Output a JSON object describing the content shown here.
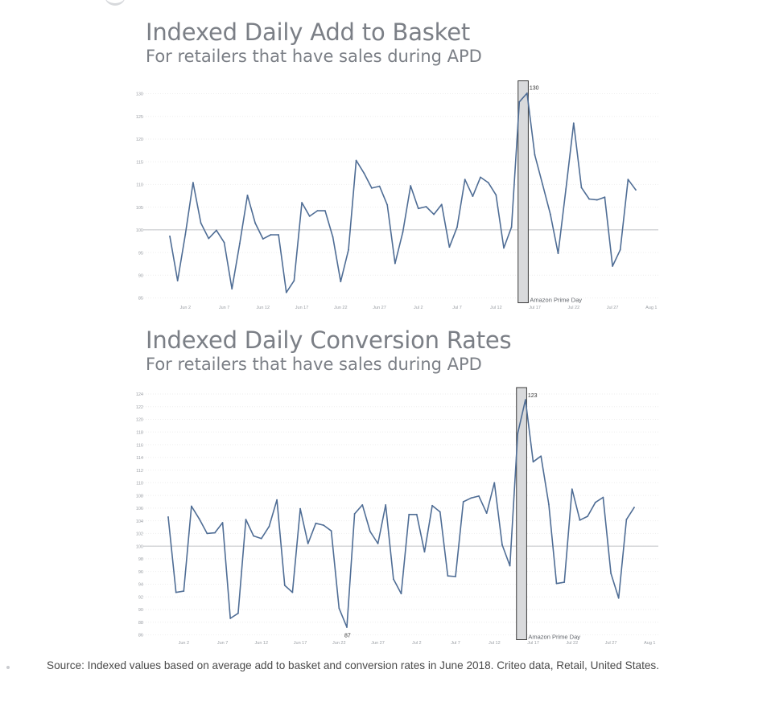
{
  "charts": [
    {
      "title": "Indexed Daily Add to Basket",
      "subtitle": "For retailers that have sales during APD"
    },
    {
      "title": "Indexed Daily Conversion Rates",
      "subtitle": "For retailers that have sales during APD"
    }
  ],
  "source": "Source: Indexed values based on average add to basket and conversion rates in June 2018. Criteo data, Retail, United States.",
  "chart_data": [
    {
      "type": "line",
      "title": "Indexed Daily Add to Basket",
      "subtitle": "For retailers that have sales during APD",
      "x_start": "2018-05-31",
      "xtick_labels": [
        "Jun 2",
        "Jun 7",
        "Jun 12",
        "Jun 17",
        "Jun 22",
        "Jun 27",
        "Jul 2",
        "Jul 7",
        "Jul 12",
        "Jul 17",
        "Jul 22",
        "Jul 27",
        "Aug 1"
      ],
      "ytick_labels": [
        "85",
        "90",
        "95",
        "100",
        "105",
        "110",
        "115",
        "120",
        "125",
        "130"
      ],
      "ylim": [
        85,
        130
      ],
      "reference_line": 100,
      "color": "#4f6d95",
      "highlight": {
        "label": "Amazon Prime Day",
        "from": "Jul 16",
        "to": "Jul 17"
      },
      "annotations": [
        {
          "x": "Jul 17",
          "value": 130,
          "text": "130"
        }
      ],
      "series": [
        {
          "values": [
            98.6,
            88.8,
            99.0,
            110.4,
            101.5,
            98.1,
            99.9,
            97.2,
            87.0,
            97.0,
            107.6,
            101.5,
            98.0,
            98.9,
            98.9,
            86.2,
            88.8,
            106.0,
            103.0,
            104.2,
            104.2,
            98.4,
            88.6,
            95.6,
            115.3,
            112.5,
            109.2,
            109.6,
            105.5,
            92.6,
            99.5,
            109.7,
            104.7,
            105.1,
            103.4,
            105.6,
            96.2,
            100.6,
            111.1,
            107.4,
            111.6,
            110.4,
            107.7,
            96.0,
            100.6,
            128.2,
            130.1,
            116.5,
            110.0,
            103.4,
            94.8,
            109.0,
            123.5,
            109.3,
            106.8,
            106.6,
            107.2,
            92.0,
            95.6,
            111.1,
            108.8
          ]
        }
      ]
    },
    {
      "type": "line",
      "title": "Indexed Daily Conversion Rates",
      "subtitle": "For retailers that have sales during APD",
      "x_start": "2018-05-31",
      "xtick_labels": [
        "Jun 2",
        "Jun 7",
        "Jun 12",
        "Jun 17",
        "Jun 22",
        "Jun 27",
        "Jul 2",
        "Jul 7",
        "Jul 12",
        "Jul 17",
        "Jul 22",
        "Jul 27",
        "Aug 1"
      ],
      "ytick_labels": [
        "86",
        "88",
        "90",
        "92",
        "94",
        "96",
        "98",
        "100",
        "102",
        "104",
        "106",
        "108",
        "110",
        "112",
        "114",
        "116",
        "118",
        "120",
        "122",
        "124"
      ],
      "ylim": [
        86,
        124
      ],
      "reference_line": 100,
      "color": "#4f6d95",
      "highlight": {
        "label": "Amazon Prime Day",
        "from": "Jul 16",
        "to": "Jul 17"
      },
      "annotations": [
        {
          "x": "Jul 17",
          "value": 123,
          "text": "123"
        },
        {
          "x": "Jun 23",
          "value": 87,
          "text": "87"
        }
      ],
      "series": [
        {
          "values": [
            104.6,
            92.7,
            92.9,
            106.3,
            104.3,
            102.0,
            102.1,
            103.7,
            88.6,
            89.4,
            104.2,
            101.6,
            101.2,
            103.1,
            107.3,
            93.8,
            92.7,
            105.9,
            100.4,
            103.6,
            103.3,
            102.4,
            90.2,
            87.2,
            105.1,
            106.5,
            102.3,
            100.4,
            106.5,
            94.8,
            92.5,
            105.0,
            105.0,
            99.1,
            106.4,
            105.4,
            95.3,
            95.2,
            107.0,
            107.6,
            107.9,
            105.2,
            110.0,
            100.2,
            96.9,
            117.8,
            123.1,
            113.3,
            114.2,
            106.6,
            94.1,
            94.3,
            109.0,
            104.1,
            104.7,
            106.9,
            107.7,
            95.7,
            91.8,
            104.2,
            106.1
          ]
        }
      ]
    }
  ]
}
